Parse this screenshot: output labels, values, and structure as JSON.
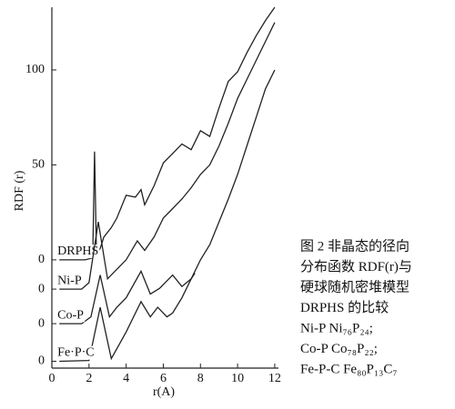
{
  "chart_data": {
    "type": "line",
    "ylabel": "RDF (r)",
    "xlabel": "r(A)",
    "xlim": [
      0,
      12.2
    ],
    "xticks": [
      0,
      2,
      4,
      6,
      8,
      10,
      12
    ],
    "ylim": [
      -57,
      133
    ],
    "yticks": [
      {
        "value": -53.4,
        "label": "0"
      },
      {
        "value": -33.6,
        "label": "0"
      },
      {
        "value": -15.4,
        "label": "0"
      },
      0,
      50,
      100
    ],
    "series": [
      {
        "name": "DRPHS",
        "color": "#222",
        "x": [
          0.4,
          1.8,
          2.2,
          2.3,
          2.4,
          2.6,
          2.8,
          3.2,
          3.5,
          4.0,
          4.5,
          4.8,
          5.0,
          5.5,
          6.0,
          6.5,
          7.0,
          7.5,
          8.0,
          8.5,
          9.0,
          9.5,
          10.0,
          10.5,
          11.0,
          11.5,
          12.0
        ],
        "values": [
          0,
          0,
          1,
          57,
          3,
          6,
          12,
          17,
          22,
          34,
          33,
          37,
          29,
          39,
          51,
          56,
          61,
          58,
          68,
          65,
          80,
          94,
          99,
          109,
          118,
          126,
          133
        ]
      },
      {
        "name": "Ni-P",
        "color": "#222",
        "x": [
          0.4,
          1.6,
          2.0,
          2.5,
          3.0,
          3.5,
          4.0,
          4.6,
          5.0,
          5.5,
          6.0,
          6.5,
          7.0,
          7.5,
          8.0,
          8.5,
          9.0,
          9.5,
          10.0,
          10.5,
          11.0,
          11.5,
          12.0
        ],
        "values": [
          -15.4,
          -15.4,
          -12,
          20,
          -10,
          -5,
          0,
          10,
          5,
          12,
          22,
          27,
          32,
          38,
          45,
          50,
          60,
          72,
          85,
          95,
          105,
          115,
          125
        ]
      },
      {
        "name": "Co-P",
        "color": "#222",
        "x": [
          0.4,
          1.6,
          2.1,
          2.6,
          3.1,
          3.5,
          4.0,
          4.8,
          5.3,
          5.8,
          6.3,
          6.5,
          7.0,
          7.5,
          7.7
        ],
        "values": [
          -33.6,
          -33.6,
          -30,
          -8,
          -30,
          -25,
          -20,
          -6,
          -18,
          -15,
          -10,
          -8,
          -14,
          -10,
          -7
        ]
      },
      {
        "name": "Fe·P·C",
        "color": "#222",
        "x": [
          0.4,
          2.0,
          2.6,
          3.2,
          3.6,
          4.0,
          4.8,
          5.3,
          5.7,
          6.2,
          6.5,
          7.0,
          7.5,
          8.0,
          8.5,
          9.0,
          9.5,
          10.0,
          10.5,
          11.0,
          11.5,
          12.0
        ],
        "values": [
          -53.4,
          -53,
          -25,
          -52,
          -45,
          -38,
          -22,
          -30,
          -25,
          -30,
          -28,
          -20,
          -10,
          0,
          8,
          20,
          32,
          45,
          60,
          75,
          90,
          100
        ]
      }
    ],
    "caption": [
      "图 2  非晶态的径向",
      "分布函数 RDF(r)与",
      "硬球随机密堆模型",
      "DRPHS 的比较",
      "Ni-P      Ni₇₆P₂₄;",
      "Co-P      Co₇₈P₂₂;",
      "Fe-P-C  Fe₈₀P₁₃C₇"
    ]
  }
}
